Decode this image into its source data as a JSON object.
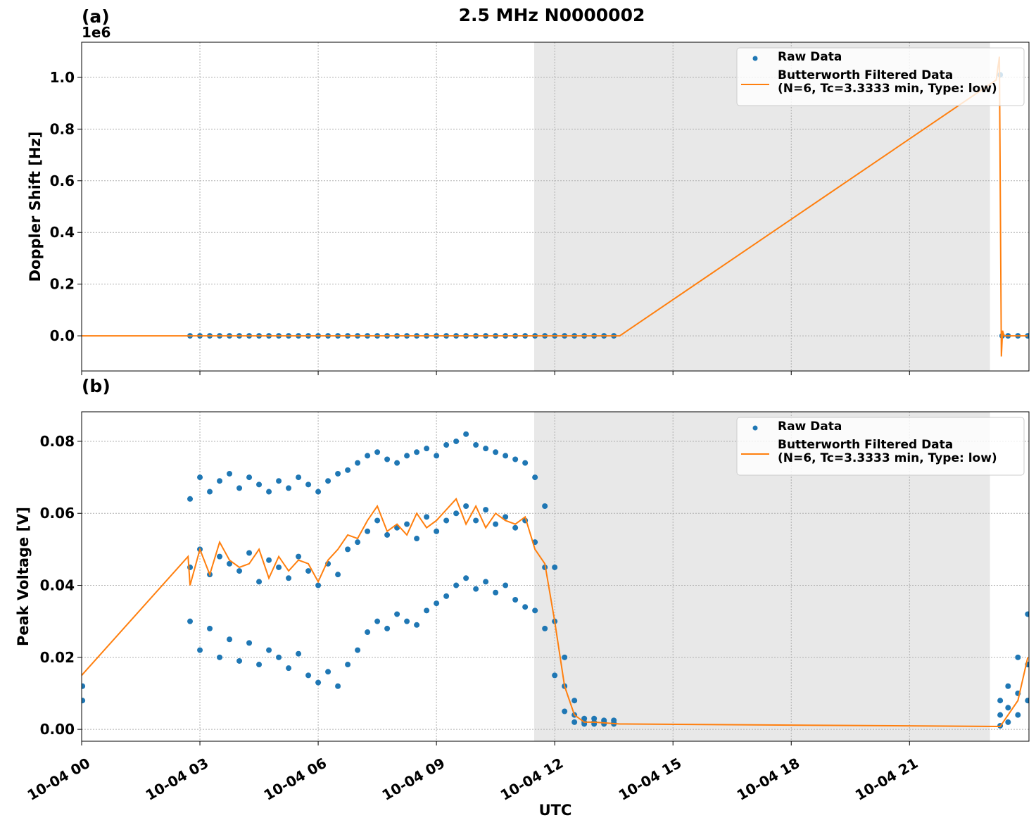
{
  "chart_data": [
    {
      "type": "scatter",
      "title": "2.5 MHz N0000002",
      "panel_label": "(a)",
      "offset_text": "1e6",
      "ylabel": "Doppler Shift [Hz]",
      "xlim": [
        0,
        24.03
      ],
      "xticks": [
        0,
        3,
        6,
        9,
        12,
        15,
        18,
        21
      ],
      "ylim": [
        -136000,
        1136000
      ],
      "yticks": [
        {
          "value": 0,
          "label": "0.0"
        },
        {
          "value": 200000,
          "label": "0.2"
        },
        {
          "value": 400000,
          "label": "0.4"
        },
        {
          "value": 600000,
          "label": "0.6"
        },
        {
          "value": 800000,
          "label": "0.8"
        },
        {
          "value": 1000000,
          "label": "1.0"
        }
      ],
      "grid": true,
      "legend": "upper right",
      "shaded_xspan": [
        11.48,
        23.04
      ],
      "shade_color": "#e8e8e8",
      "series": [
        {
          "name": "Raw Data",
          "style": "markers",
          "color": "#1f77b4",
          "x": [
            2.75,
            3,
            3.25,
            3.5,
            3.75,
            4,
            4.25,
            4.5,
            4.75,
            5,
            5.25,
            5.5,
            5.75,
            6,
            6.25,
            6.5,
            6.75,
            7,
            7.25,
            7.5,
            7.75,
            8,
            8.25,
            8.5,
            8.75,
            9,
            9.25,
            9.5,
            9.75,
            10,
            10.25,
            10.5,
            10.75,
            11,
            11.25,
            11.5,
            11.75,
            12,
            12.25,
            12.5,
            12.75,
            13,
            13.25,
            13.5,
            23.3,
            23.35,
            23.5,
            23.75,
            24
          ],
          "values": [
            0,
            0,
            0,
            0,
            0,
            0,
            0,
            0,
            0,
            0,
            0,
            0,
            0,
            0,
            0,
            0,
            0,
            0,
            0,
            0,
            0,
            0,
            0,
            0,
            0,
            0,
            0,
            0,
            0,
            0,
            0,
            0,
            0,
            0,
            0,
            0,
            0,
            0,
            0,
            0,
            0,
            0,
            0,
            0,
            1010000,
            0,
            0,
            0,
            0
          ]
        },
        {
          "name": "Butterworth Filtered Data\n(N=6, Tc=3.3333 min, Type: low)",
          "style": "line",
          "color": "#ff7f0e",
          "x": [
            0,
            2.7,
            13.65,
            23.2,
            23.28,
            23.33,
            23.36,
            23.4,
            24
          ],
          "values": [
            0,
            0,
            0,
            990000,
            1080000,
            -80000,
            20000,
            0,
            0
          ]
        }
      ]
    },
    {
      "type": "scatter",
      "panel_label": "(b)",
      "ylabel": "Peak Voltage [V]",
      "xlabel": "UTC",
      "xlim": [
        0,
        24.03
      ],
      "xticks": [
        {
          "value": 0,
          "label": "10-04 00"
        },
        {
          "value": 3,
          "label": "10-04 03"
        },
        {
          "value": 6,
          "label": "10-04 06"
        },
        {
          "value": 9,
          "label": "10-04 09"
        },
        {
          "value": 12,
          "label": "10-04 12"
        },
        {
          "value": 15,
          "label": "10-04 15"
        },
        {
          "value": 18,
          "label": "10-04 18"
        },
        {
          "value": 21,
          "label": "10-04 21"
        }
      ],
      "ylim": [
        -0.0033,
        0.0882
      ],
      "yticks": [
        {
          "value": 0,
          "label": "0.00"
        },
        {
          "value": 0.02,
          "label": "0.02"
        },
        {
          "value": 0.04,
          "label": "0.04"
        },
        {
          "value": 0.06,
          "label": "0.06"
        },
        {
          "value": 0.08,
          "label": "0.08"
        }
      ],
      "grid": true,
      "legend": "upper right",
      "shaded_xspan": [
        11.48,
        23.04
      ],
      "shade_color": "#e8e8e8",
      "series": [
        {
          "name": "Raw Data",
          "style": "markers",
          "color": "#1f77b4",
          "x": [
            0.02,
            0.02,
            2.75,
            2.75,
            2.75,
            3,
            3,
            3,
            3.25,
            3.25,
            3.25,
            3.5,
            3.5,
            3.5,
            3.75,
            3.75,
            3.75,
            4,
            4,
            4,
            4.25,
            4.25,
            4.25,
            4.5,
            4.5,
            4.5,
            4.75,
            4.75,
            4.75,
            5,
            5,
            5,
            5.25,
            5.25,
            5.25,
            5.5,
            5.5,
            5.5,
            5.75,
            5.75,
            5.75,
            6,
            6,
            6,
            6.25,
            6.25,
            6.25,
            6.5,
            6.5,
            6.5,
            6.75,
            6.75,
            6.75,
            7,
            7,
            7,
            7.25,
            7.25,
            7.25,
            7.5,
            7.5,
            7.5,
            7.75,
            7.75,
            7.75,
            8,
            8,
            8,
            8.25,
            8.25,
            8.25,
            8.5,
            8.5,
            8.5,
            8.75,
            8.75,
            8.75,
            9,
            9,
            9,
            9.25,
            9.25,
            9.25,
            9.5,
            9.5,
            9.5,
            9.75,
            9.75,
            9.75,
            10,
            10,
            10,
            10.25,
            10.25,
            10.25,
            10.5,
            10.5,
            10.5,
            10.75,
            10.75,
            10.75,
            11,
            11,
            11,
            11.25,
            11.25,
            11.25,
            11.5,
            11.5,
            11.5,
            11.75,
            11.75,
            11.75,
            12,
            12,
            12,
            12.25,
            12.25,
            12.25,
            12.5,
            12.5,
            12.5,
            12.75,
            12.75,
            12.75,
            13,
            13,
            13,
            13.25,
            13.25,
            13.25,
            13.5,
            13.5,
            13.5,
            23.3,
            23.3,
            23.3,
            23.5,
            23.5,
            23.5,
            23.75,
            23.75,
            23.75,
            24,
            24,
            24
          ],
          "values": [
            0.012,
            0.008,
            0.064,
            0.045,
            0.03,
            0.07,
            0.05,
            0.022,
            0.066,
            0.043,
            0.028,
            0.069,
            0.048,
            0.02,
            0.071,
            0.046,
            0.025,
            0.067,
            0.044,
            0.019,
            0.07,
            0.049,
            0.024,
            0.068,
            0.041,
            0.018,
            0.066,
            0.047,
            0.022,
            0.069,
            0.045,
            0.02,
            0.067,
            0.042,
            0.017,
            0.07,
            0.048,
            0.021,
            0.068,
            0.044,
            0.015,
            0.066,
            0.04,
            0.013,
            0.069,
            0.046,
            0.016,
            0.071,
            0.043,
            0.012,
            0.072,
            0.05,
            0.018,
            0.074,
            0.052,
            0.022,
            0.076,
            0.055,
            0.027,
            0.077,
            0.058,
            0.03,
            0.075,
            0.054,
            0.028,
            0.074,
            0.056,
            0.032,
            0.076,
            0.057,
            0.03,
            0.077,
            0.053,
            0.029,
            0.078,
            0.059,
            0.033,
            0.076,
            0.055,
            0.035,
            0.079,
            0.058,
            0.037,
            0.08,
            0.06,
            0.04,
            0.082,
            0.062,
            0.042,
            0.079,
            0.058,
            0.039,
            0.078,
            0.061,
            0.041,
            0.077,
            0.057,
            0.038,
            0.076,
            0.059,
            0.04,
            0.075,
            0.056,
            0.036,
            0.074,
            0.058,
            0.034,
            0.07,
            0.052,
            0.033,
            0.062,
            0.045,
            0.028,
            0.045,
            0.03,
            0.015,
            0.02,
            0.012,
            0.005,
            0.008,
            0.004,
            0.002,
            0.003,
            0.002,
            0.0015,
            0.003,
            0.002,
            0.0015,
            0.0025,
            0.002,
            0.0015,
            0.0025,
            0.0018,
            0.0015,
            0.008,
            0.004,
            0.001,
            0.012,
            0.006,
            0.002,
            0.02,
            0.01,
            0.004,
            0.032,
            0.018,
            0.008
          ]
        },
        {
          "name": "Butterworth Filtered Data\n(N=6, Tc=3.3333 min, Type: low)",
          "style": "line",
          "color": "#ff7f0e",
          "x": [
            0,
            2.7,
            2.75,
            3,
            3.25,
            3.5,
            3.75,
            4,
            4.25,
            4.5,
            4.75,
            5,
            5.25,
            5.5,
            5.75,
            6,
            6.25,
            6.5,
            6.75,
            7,
            7.25,
            7.5,
            7.75,
            8,
            8.25,
            8.5,
            8.75,
            9,
            9.25,
            9.5,
            9.75,
            10,
            10.25,
            10.5,
            10.75,
            11,
            11.25,
            11.5,
            11.75,
            12,
            12.25,
            12.5,
            12.75,
            13,
            13.65,
            23.3,
            23.5,
            23.75,
            24
          ],
          "values": [
            0.015,
            0.048,
            0.04,
            0.05,
            0.043,
            0.052,
            0.047,
            0.045,
            0.046,
            0.05,
            0.042,
            0.048,
            0.044,
            0.047,
            0.046,
            0.041,
            0.047,
            0.05,
            0.054,
            0.053,
            0.058,
            0.062,
            0.055,
            0.057,
            0.054,
            0.06,
            0.056,
            0.058,
            0.061,
            0.064,
            0.057,
            0.062,
            0.056,
            0.06,
            0.058,
            0.057,
            0.059,
            0.05,
            0.046,
            0.03,
            0.012,
            0.004,
            0.002,
            0.002,
            0.0015,
            0.0008,
            0.004,
            0.008,
            0.02
          ]
        }
      ]
    }
  ]
}
